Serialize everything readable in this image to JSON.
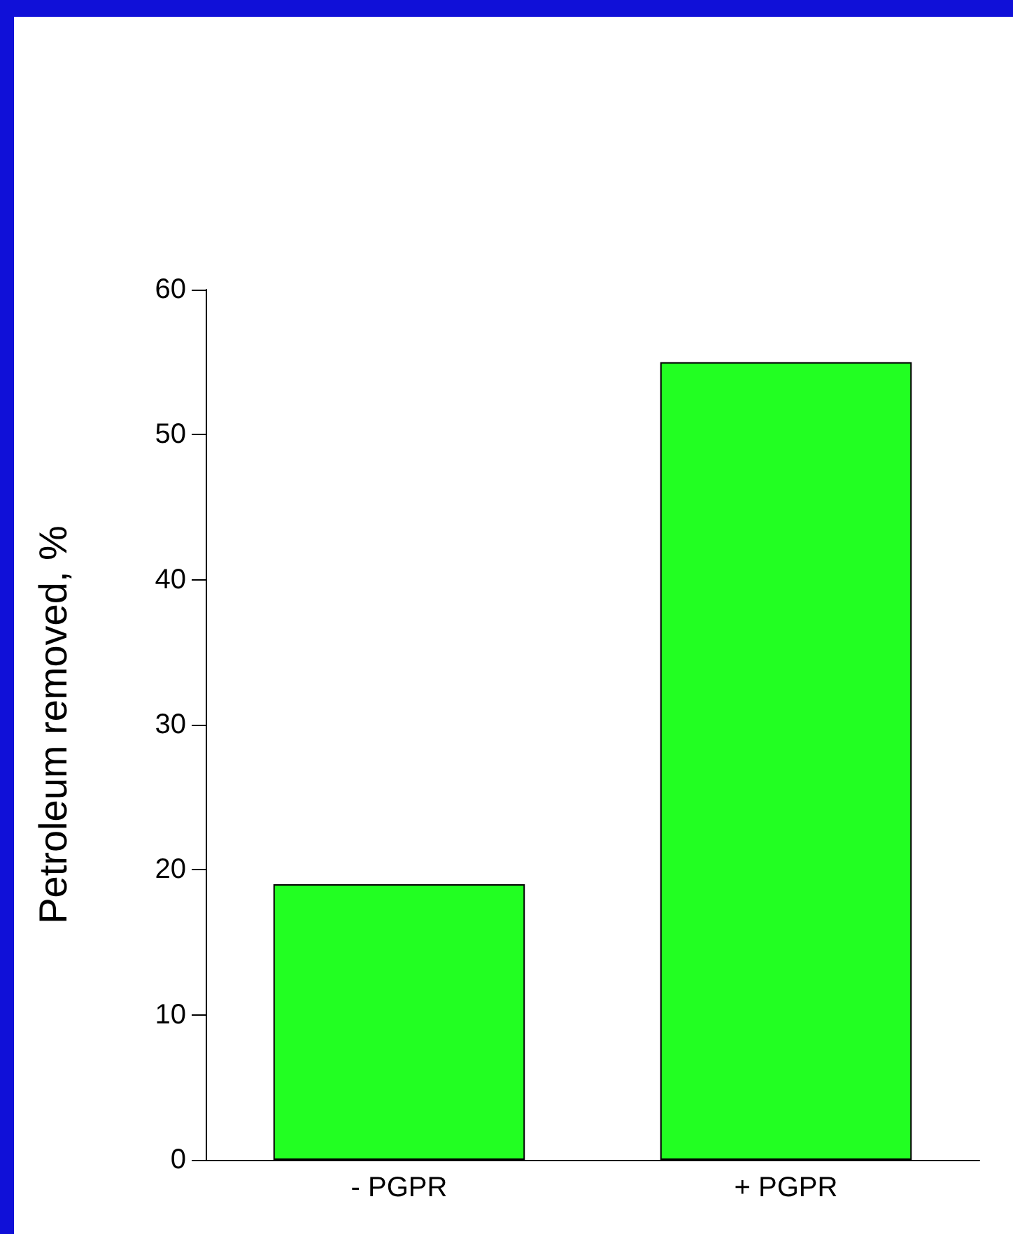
{
  "chart_data": {
    "type": "bar",
    "ylabel": "Petroleum removed, %",
    "categories": [
      "- PGPR",
      "+ PGPR"
    ],
    "values": [
      19,
      55
    ],
    "color": "#22ff22",
    "ylim": [
      0,
      60
    ],
    "yticks": [
      0,
      10,
      20,
      30,
      40,
      50,
      60
    ],
    "grid": false
  }
}
